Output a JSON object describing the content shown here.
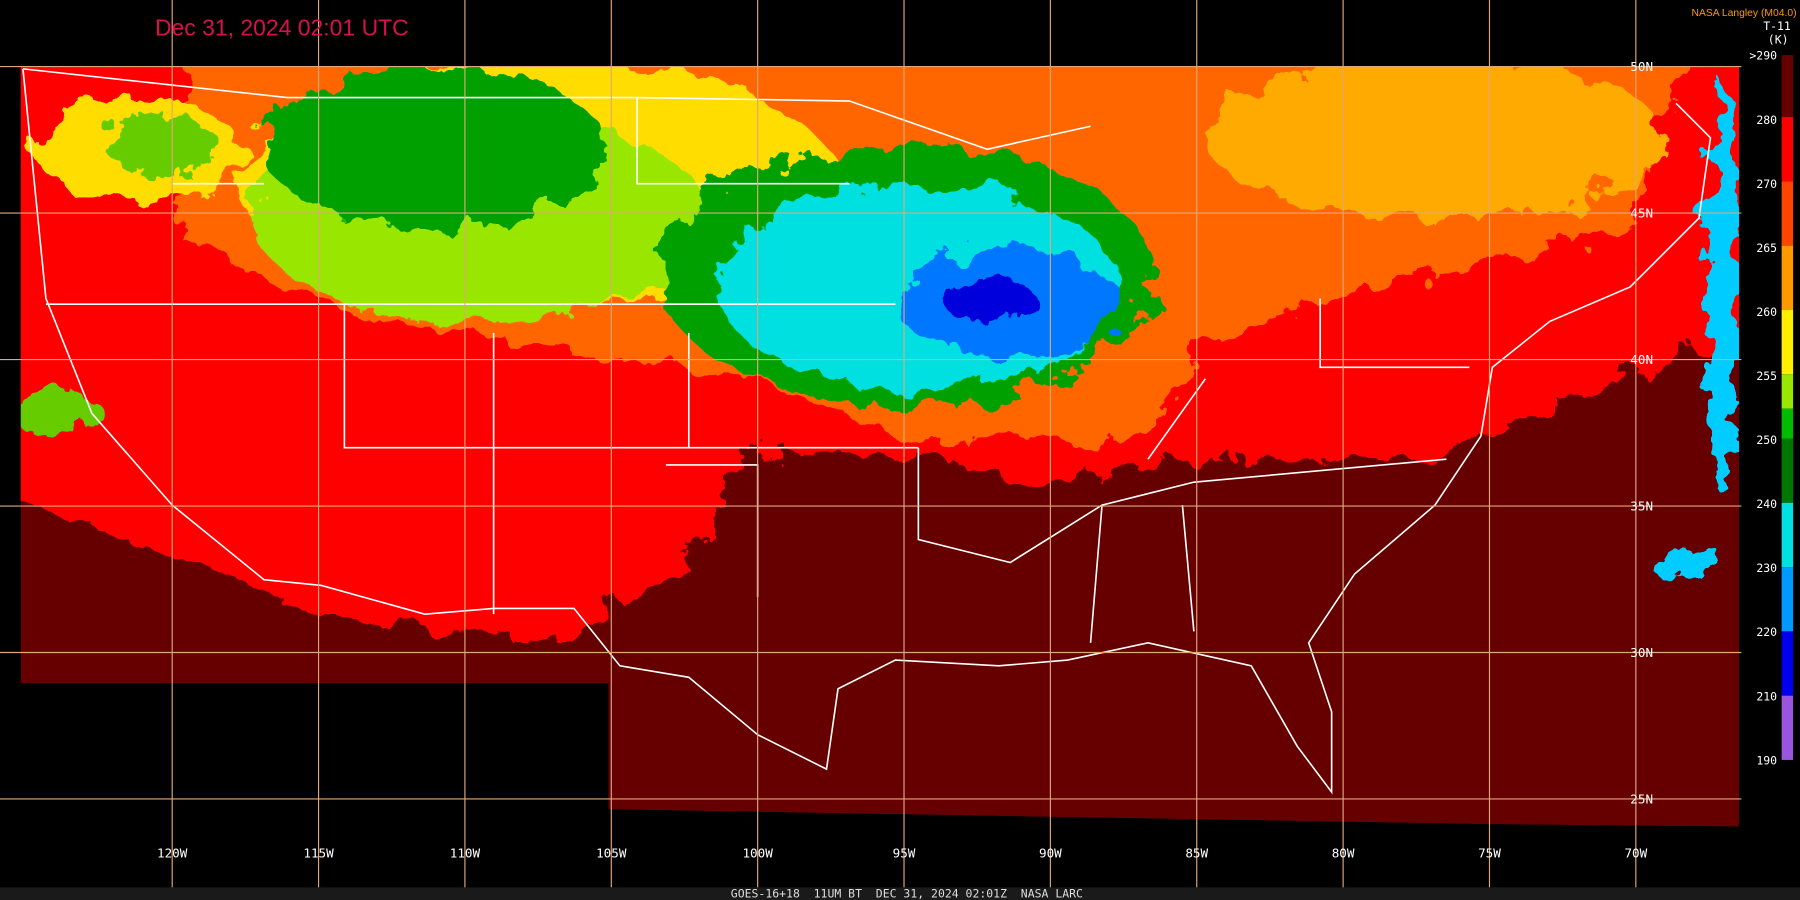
{
  "header": {
    "title": "Dec 31, 2024 02:01 UTC",
    "source": "NASA Langley (M04.0)"
  },
  "colorbar": {
    "label": "T-11",
    "unit": "(K)",
    "ticks": [
      ">290",
      "280",
      "270",
      "265",
      "260",
      "255",
      "250",
      "240",
      "230",
      "220",
      "210",
      "190"
    ]
  },
  "grid": {
    "longitudes": [
      "120W",
      "115W",
      "110W",
      "105W",
      "100W",
      "95W",
      "90W",
      "85W",
      "80W",
      "75W",
      "70W"
    ],
    "latitudes": [
      "50N",
      "45N",
      "40N",
      "35N",
      "30N",
      "25N"
    ]
  },
  "footer": {
    "caption": "GOES-16+18  11UM BT  DEC 31, 2024 02:01Z  NASA LARC"
  }
}
